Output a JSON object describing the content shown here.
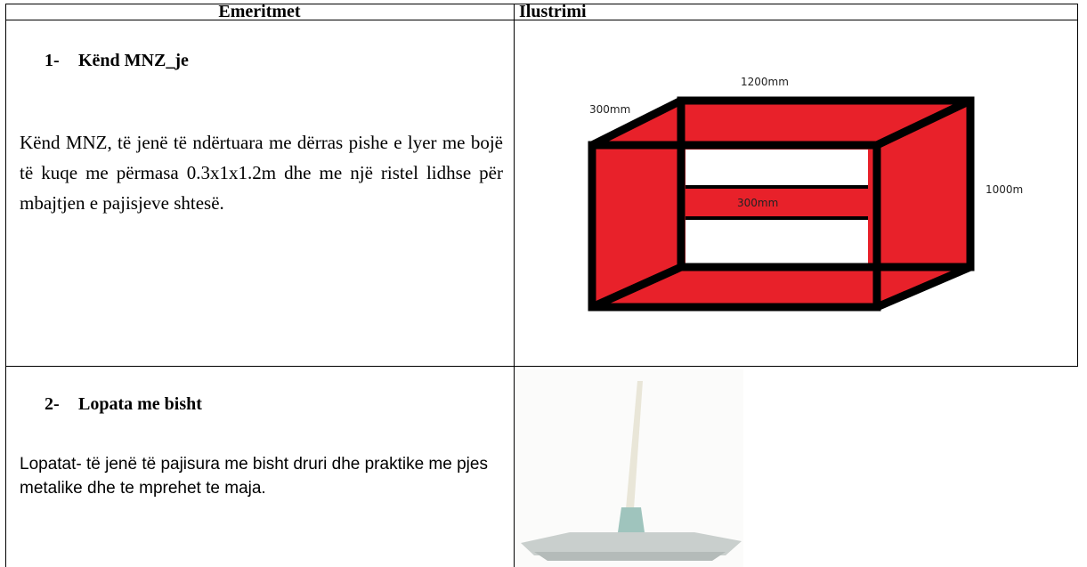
{
  "table": {
    "headers": [
      "Emeritmet",
      "Ilustrimi"
    ],
    "rows": [
      {
        "number": "1-",
        "title": "Kënd MNZ_je",
        "description": "Kënd MNZ, të jenë të ndërtuara me dërras pishe e lyer me bojë të kuqe me përmasa 0.3x1x1.2m dhe me një ristel lidhse për mbajtjen e pajisjeve shtesë.",
        "diagram_labels": [
          "1200mm",
          "300mm",
          "300mm",
          "1000m"
        ]
      },
      {
        "number": "2-",
        "title": "Lopata me bisht",
        "description": "Lopatat- të jenë të pajisura me bisht druri dhe praktike me pjes metalike dhe te mprehet te maja."
      }
    ]
  }
}
